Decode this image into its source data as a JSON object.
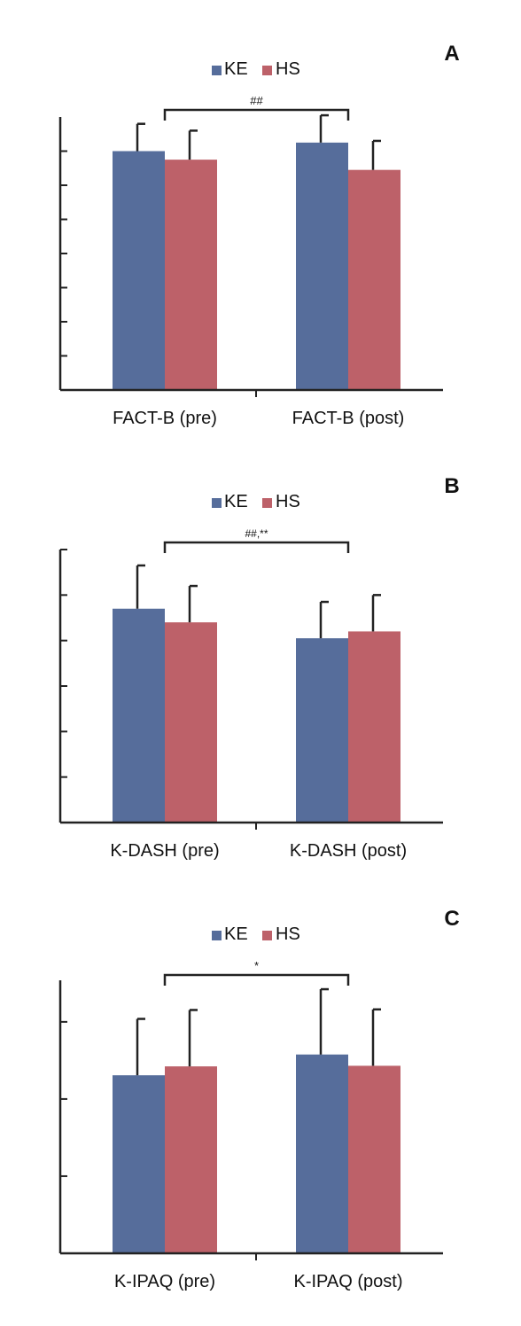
{
  "colors": {
    "KE": "#566d9b",
    "HS": "#bd6169",
    "axis": "#222222"
  },
  "chart_data": [
    {
      "type": "bar",
      "panel_label": "A",
      "categories": [
        "FACT-B (pre)",
        "FACT-B (post)"
      ],
      "series": [
        {
          "name": "KE",
          "values": [
            7.0,
            7.25
          ],
          "error": [
            0.8,
            0.8
          ]
        },
        {
          "name": "HS",
          "values": [
            6.75,
            6.45
          ],
          "error": [
            0.85,
            0.85
          ]
        }
      ],
      "ylim": [
        0,
        8
      ],
      "yticks": [
        1,
        2,
        3,
        4,
        5,
        6,
        7
      ],
      "legend": "top-center",
      "annotation": "##"
    },
    {
      "type": "bar",
      "panel_label": "B",
      "categories": [
        "K-DASH (pre)",
        "K-DASH (post)"
      ],
      "series": [
        {
          "name": "KE",
          "values": [
            4.7,
            4.05
          ],
          "error": [
            0.95,
            0.8
          ]
        },
        {
          "name": "HS",
          "values": [
            4.4,
            4.2
          ],
          "error": [
            0.8,
            0.8
          ]
        }
      ],
      "ylim": [
        0,
        6
      ],
      "yticks": [
        1,
        2,
        3,
        4,
        5,
        6
      ],
      "legend": "top-center",
      "annotation": "##,**"
    },
    {
      "type": "bar",
      "panel_label": "C",
      "categories": [
        "K-IPAQ (pre)",
        "K-IPAQ (post)"
      ],
      "series": [
        {
          "name": "KE",
          "values": [
            3.0,
            3.35
          ],
          "error": [
            0.95,
            1.1
          ]
        },
        {
          "name": "HS",
          "values": [
            3.15,
            3.16
          ],
          "error": [
            0.95,
            0.95
          ]
        }
      ],
      "ylim": [
        0,
        4.6
      ],
      "yticks": [
        1.3,
        2.6,
        3.9
      ],
      "legend": "top-center",
      "annotation": "*"
    }
  ]
}
